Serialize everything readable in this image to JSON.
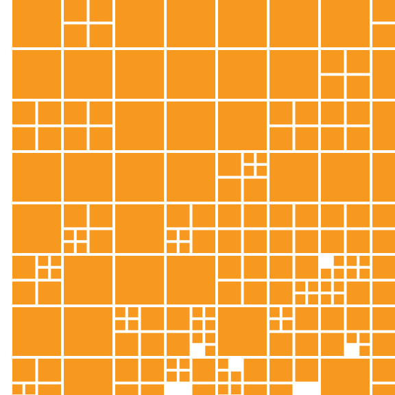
{
  "title": "",
  "colors": {
    "background": "#ffffff",
    "tile": "#f7991e"
  },
  "pattern": {
    "description_visible_text": "",
    "tile_shape": "square"
  }
}
